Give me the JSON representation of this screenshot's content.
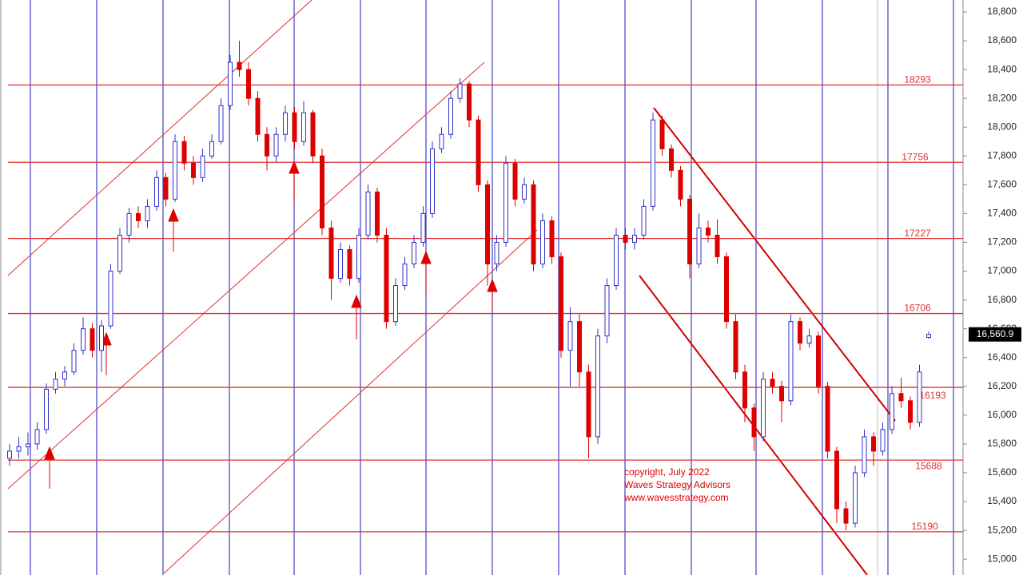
{
  "chart_data": {
    "type": "candlestick",
    "ohlc": [
      [
        15700,
        15800,
        15650,
        15750
      ],
      [
        15750,
        15850,
        15700,
        15780
      ],
      [
        15780,
        15880,
        15720,
        15800
      ],
      [
        15800,
        15950,
        15760,
        15900
      ],
      [
        15900,
        16220,
        15870,
        16180
      ],
      [
        16180,
        16300,
        16150,
        16250
      ],
      [
        16250,
        16340,
        16200,
        16300
      ],
      [
        16300,
        16500,
        16280,
        16450
      ],
      [
        16450,
        16680,
        16420,
        16600
      ],
      [
        16600,
        16640,
        16400,
        16450
      ],
      [
        16450,
        16660,
        16300,
        16620
      ],
      [
        16620,
        17050,
        16600,
        17000
      ],
      [
        17000,
        17300,
        16980,
        17250
      ],
      [
        17250,
        17440,
        17200,
        17400
      ],
      [
        17400,
        17450,
        17300,
        17350
      ],
      [
        17350,
        17500,
        17300,
        17450
      ],
      [
        17450,
        17700,
        17420,
        17650
      ],
      [
        17650,
        17680,
        17450,
        17500
      ],
      [
        17500,
        17950,
        17480,
        17900
      ],
      [
        17900,
        17940,
        17700,
        17750
      ],
      [
        17750,
        17800,
        17600,
        17650
      ],
      [
        17650,
        17850,
        17620,
        17800
      ],
      [
        17800,
        17950,
        17780,
        17900
      ],
      [
        17900,
        18200,
        17880,
        18150
      ],
      [
        18150,
        18500,
        18120,
        18450
      ],
      [
        18450,
        18600,
        18350,
        18400
      ],
      [
        18400,
        18450,
        18150,
        18200
      ],
      [
        18200,
        18250,
        17900,
        17950
      ],
      [
        17950,
        18000,
        17700,
        17800
      ],
      [
        17800,
        18000,
        17760,
        17950
      ],
      [
        17950,
        18150,
        17900,
        18100
      ],
      [
        18100,
        18140,
        17850,
        17900
      ],
      [
        17900,
        18180,
        17870,
        18100
      ],
      [
        18100,
        18120,
        17750,
        17800
      ],
      [
        17800,
        17850,
        17250,
        17300
      ],
      [
        17300,
        17350,
        16800,
        16950
      ],
      [
        16950,
        17200,
        16920,
        17150
      ],
      [
        17150,
        17180,
        16900,
        16950
      ],
      [
        16950,
        17300,
        16920,
        17250
      ],
      [
        17250,
        17600,
        17220,
        17550
      ],
      [
        17550,
        17580,
        17200,
        17250
      ],
      [
        17250,
        17300,
        16600,
        16650
      ],
      [
        16650,
        16950,
        16620,
        16900
      ],
      [
        16900,
        17100,
        16870,
        17050
      ],
      [
        17050,
        17250,
        17020,
        17200
      ],
      [
        17200,
        17450,
        17170,
        17400
      ],
      [
        17400,
        17900,
        17370,
        17850
      ],
      [
        17850,
        18000,
        17820,
        17950
      ],
      [
        17950,
        18250,
        17920,
        18200
      ],
      [
        18200,
        18340,
        18170,
        18300
      ],
      [
        18300,
        18320,
        18000,
        18050
      ],
      [
        18050,
        18080,
        17550,
        17600
      ],
      [
        17600,
        17630,
        16900,
        17050
      ],
      [
        17050,
        17250,
        17000,
        17200
      ],
      [
        17200,
        17800,
        17170,
        17750
      ],
      [
        17750,
        17780,
        17450,
        17500
      ],
      [
        17500,
        17650,
        17470,
        17600
      ],
      [
        17600,
        17630,
        17000,
        17050
      ],
      [
        17050,
        17400,
        17020,
        17350
      ],
      [
        17350,
        17380,
        17050,
        17100
      ],
      [
        17100,
        17130,
        16400,
        16450
      ],
      [
        16450,
        16750,
        16200,
        16650
      ],
      [
        16650,
        16700,
        16200,
        16300
      ],
      [
        16300,
        16350,
        15700,
        15850
      ],
      [
        15850,
        16600,
        15800,
        16550
      ],
      [
        16550,
        16950,
        16500,
        16900
      ],
      [
        16900,
        17300,
        16870,
        17250
      ],
      [
        17250,
        17300,
        17150,
        17200
      ],
      [
        17200,
        17300,
        17150,
        17250
      ],
      [
        17250,
        17500,
        17220,
        17450
      ],
      [
        17450,
        18100,
        17420,
        18050
      ],
      [
        18050,
        18080,
        17800,
        17850
      ],
      [
        17850,
        17880,
        17650,
        17700
      ],
      [
        17700,
        17730,
        17450,
        17500
      ],
      [
        17500,
        17530,
        16950,
        17050
      ],
      [
        17050,
        17400,
        17020,
        17300
      ],
      [
        17300,
        17350,
        17200,
        17250
      ],
      [
        17250,
        17360,
        17050,
        17100
      ],
      [
        17100,
        17130,
        16600,
        16650
      ],
      [
        16650,
        16700,
        16250,
        16300
      ],
      [
        16300,
        16350,
        15950,
        16050
      ],
      [
        16050,
        16080,
        15750,
        15850
      ],
      [
        15850,
        16300,
        15820,
        16250
      ],
      [
        16250,
        16300,
        16150,
        16200
      ],
      [
        16200,
        16240,
        15950,
        16100
      ],
      [
        16100,
        16700,
        16070,
        16650
      ],
      [
        16650,
        16680,
        16450,
        16500
      ],
      [
        16500,
        16600,
        16470,
        16550
      ],
      [
        16550,
        16580,
        16150,
        16200
      ],
      [
        16200,
        16230,
        15700,
        15750
      ],
      [
        15750,
        15780,
        15250,
        15350
      ],
      [
        15350,
        15400,
        15200,
        15250
      ],
      [
        15250,
        15650,
        15220,
        15600
      ],
      [
        15600,
        15900,
        15570,
        15850
      ],
      [
        15850,
        15880,
        15650,
        15750
      ],
      [
        15750,
        15950,
        15720,
        15900
      ],
      [
        15900,
        16200,
        15870,
        16150
      ],
      [
        16150,
        16260,
        16050,
        16100
      ],
      [
        16100,
        16130,
        15900,
        15950
      ],
      [
        15950,
        16350,
        15920,
        16300
      ],
      [
        16540,
        16580,
        16530,
        16560.9
      ]
    ],
    "up_color": "#3030c8",
    "down_color": "#dd0000",
    "ylim": [
      14890,
      18883
    ],
    "yticks": [
      {
        "value": 15000,
        "label": "15,000"
      },
      {
        "value": 15200,
        "label": "15,200"
      },
      {
        "value": 15400,
        "label": "15,400"
      },
      {
        "value": 15600,
        "label": "15,600"
      },
      {
        "value": 15800,
        "label": "15,800"
      },
      {
        "value": 16000,
        "label": "16,000"
      },
      {
        "value": 16200,
        "label": "16,200"
      },
      {
        "value": 16400,
        "label": "16,400"
      },
      {
        "value": 16600,
        "label": "16,600"
      },
      {
        "value": 16800,
        "label": "16,800"
      },
      {
        "value": 17000,
        "label": "17,000"
      },
      {
        "value": 17200,
        "label": "17,200"
      },
      {
        "value": 17400,
        "label": "17,400"
      },
      {
        "value": 17600,
        "label": "17,600"
      },
      {
        "value": 17800,
        "label": "17,800"
      },
      {
        "value": 18000,
        "label": "18,000"
      },
      {
        "value": 18200,
        "label": "18,200"
      },
      {
        "value": 18400,
        "label": "18,400"
      },
      {
        "value": 18600,
        "label": "18,600"
      },
      {
        "value": 18800,
        "label": "18,800"
      }
    ],
    "levels": [
      18293,
      17756,
      17227,
      16706,
      16193,
      15688,
      15190
    ],
    "level_color": "#e03030",
    "last_price": {
      "value": 16560.9,
      "label": "16,560.9"
    },
    "annotation": [
      "copyright, July 2022",
      "Waves Strategy Advisors",
      "www.wavesstrategy.com"
    ]
  }
}
